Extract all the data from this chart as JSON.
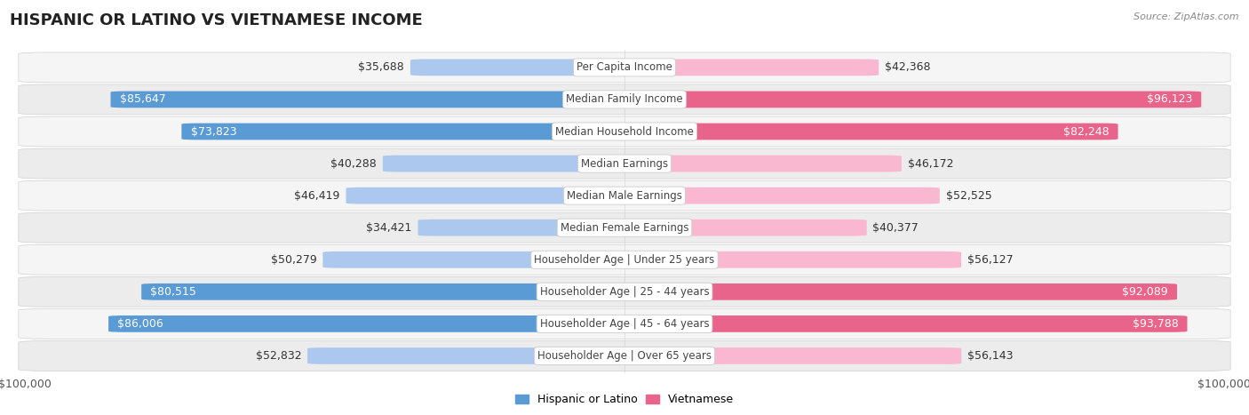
{
  "title": "HISPANIC OR LATINO VS VIETNAMESE INCOME",
  "source": "Source: ZipAtlas.com",
  "categories": [
    "Per Capita Income",
    "Median Family Income",
    "Median Household Income",
    "Median Earnings",
    "Median Male Earnings",
    "Median Female Earnings",
    "Householder Age | Under 25 years",
    "Householder Age | 25 - 44 years",
    "Householder Age | 45 - 64 years",
    "Householder Age | Over 65 years"
  ],
  "hispanic_values": [
    35688,
    85647,
    73823,
    40288,
    46419,
    34421,
    50279,
    80515,
    86006,
    52832
  ],
  "vietnamese_values": [
    42368,
    96123,
    82248,
    46172,
    52525,
    40377,
    56127,
    92089,
    93788,
    56143
  ],
  "hispanic_labels": [
    "$35,688",
    "$85,647",
    "$73,823",
    "$40,288",
    "$46,419",
    "$34,421",
    "$50,279",
    "$80,515",
    "$86,006",
    "$52,832"
  ],
  "vietnamese_labels": [
    "$42,368",
    "$96,123",
    "$82,248",
    "$46,172",
    "$52,525",
    "$40,377",
    "$56,127",
    "$92,089",
    "$93,788",
    "$56,143"
  ],
  "max_value": 100000,
  "hispanic_color_light": "#adc8ef",
  "hispanic_color_dark": "#5b9bd5",
  "vietnamese_color_light": "#f9b8cf",
  "vietnamese_color_dark": "#e8648a",
  "row_bg_light": "#f5f5f5",
  "row_bg_dark": "#e8e8e8",
  "title_fontsize": 13,
  "label_fontsize": 9,
  "cat_fontsize": 8.5,
  "axis_label_fontsize": 9,
  "legend_fontsize": 9,
  "large_threshold": 0.65
}
